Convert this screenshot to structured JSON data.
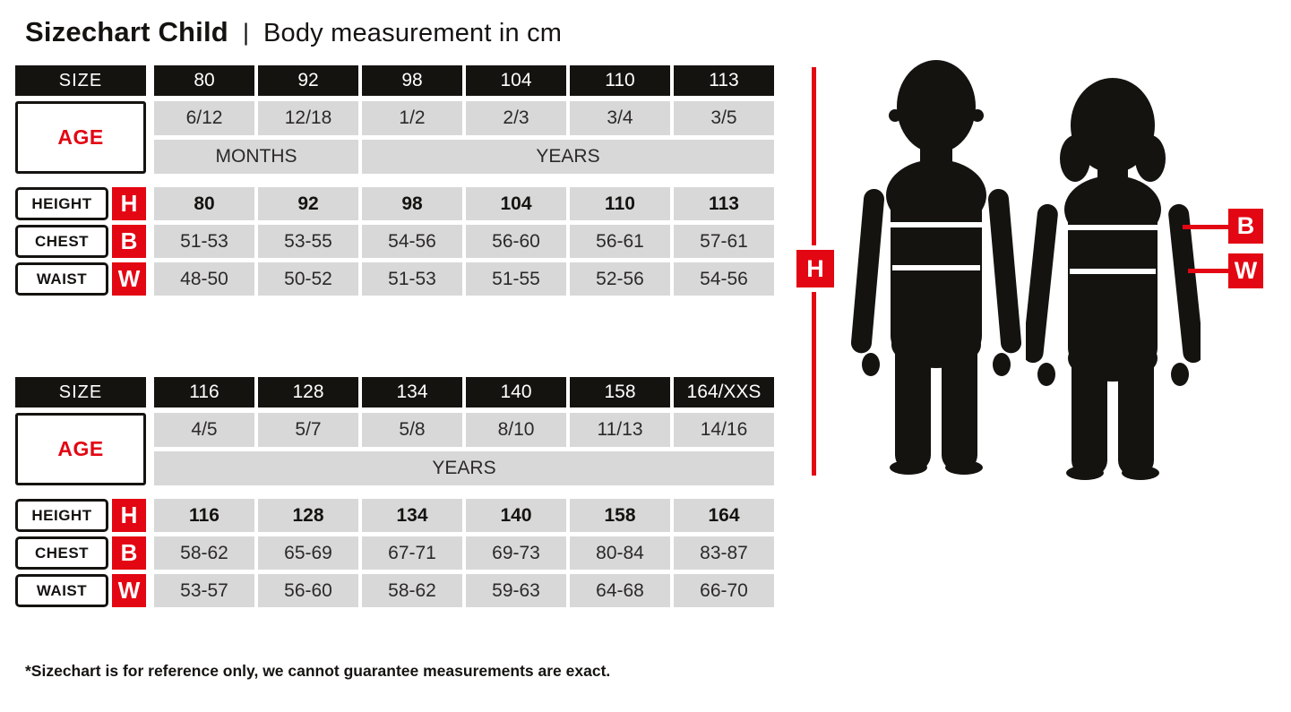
{
  "title": {
    "main": "Sizechart Child",
    "separator": "|",
    "subtitle": "Body measurement in cm"
  },
  "colors": {
    "red": "#e30613",
    "black": "#141310",
    "cell_gray": "#d8d8d8"
  },
  "row_labels": {
    "size": "SIZE",
    "age": "AGE",
    "height": "HEIGHT",
    "chest": "CHEST",
    "waist": "WAIST"
  },
  "letters": {
    "height": "H",
    "chest": "B",
    "waist": "W"
  },
  "tables": [
    {
      "sizes": [
        "80",
        "92",
        "98",
        "104",
        "110",
        "113"
      ],
      "ages": [
        "6/12",
        "12/18",
        "1/2",
        "2/3",
        "3/4",
        "3/5"
      ],
      "age_units": [
        {
          "label": "MONTHS",
          "span": 2
        },
        {
          "label": "YEARS",
          "span": 4
        }
      ],
      "height": [
        "80",
        "92",
        "98",
        "104",
        "110",
        "113"
      ],
      "chest": [
        "51-53",
        "53-55",
        "54-56",
        "56-60",
        "56-61",
        "57-61"
      ],
      "waist": [
        "48-50",
        "50-52",
        "51-53",
        "51-55",
        "52-56",
        "54-56"
      ]
    },
    {
      "sizes": [
        "116",
        "128",
        "134",
        "140",
        "158",
        "164/XXS"
      ],
      "ages": [
        "4/5",
        "5/7",
        "5/8",
        "8/10",
        "11/13",
        "14/16"
      ],
      "age_units": [
        {
          "label": "YEARS",
          "span": 6
        }
      ],
      "height": [
        "116",
        "128",
        "134",
        "140",
        "158",
        "164"
      ],
      "chest": [
        "58-62",
        "65-69",
        "67-71",
        "69-73",
        "80-84",
        "83-87"
      ],
      "waist": [
        "53-57",
        "56-60",
        "58-62",
        "59-63",
        "64-68",
        "66-70"
      ]
    }
  ],
  "footnote": "*Sizechart is for reference only, we cannot guarantee measurements are exact."
}
